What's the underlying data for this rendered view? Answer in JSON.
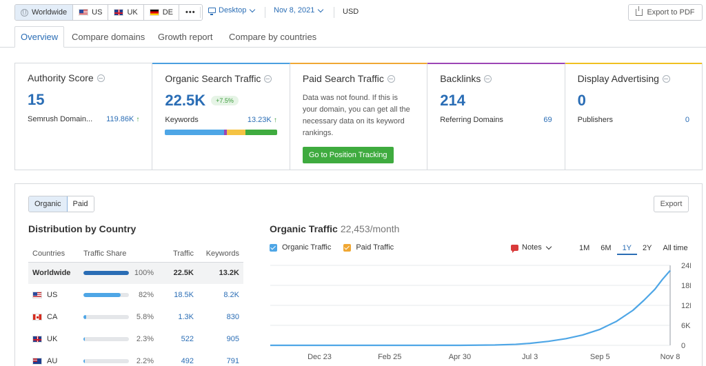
{
  "topbar": {
    "regions": [
      {
        "label": "Worldwide",
        "icon": "globe-icon",
        "active": true
      },
      {
        "label": "US",
        "icon": "flag-us-icon",
        "active": false
      },
      {
        "label": "UK",
        "icon": "flag-uk-icon",
        "active": false
      },
      {
        "label": "DE",
        "icon": "flag-de-icon",
        "active": false
      }
    ],
    "more_label": "•••",
    "device": "Desktop",
    "date": "Nov 8, 2021",
    "currency": "USD",
    "export_pdf": "Export to PDF"
  },
  "tabs": [
    {
      "label": "Overview",
      "active": true
    },
    {
      "label": "Compare domains",
      "active": false
    },
    {
      "label": "Growth report",
      "active": false
    },
    {
      "label": "Compare by countries",
      "active": false
    }
  ],
  "cards": {
    "authority": {
      "title": "Authority Score",
      "value": "15",
      "sub_label": "Semrush Domain...",
      "sub_value": "119.86K",
      "sub_arrow": "↑"
    },
    "organic": {
      "title": "Organic Search Traffic",
      "value": "22.5K",
      "badge": "+7.5%",
      "sub_label": "Keywords",
      "sub_value": "13.23K",
      "sub_arrow": "↑",
      "bar_segments": [
        {
          "color": "#4ea6e6",
          "share": 0.53
        },
        {
          "color": "#9c45b5",
          "share": 0.02
        },
        {
          "color": "#f5c343",
          "share": 0.17
        },
        {
          "color": "#3fab3f",
          "share": 0.28
        }
      ]
    },
    "paid": {
      "title": "Paid Search Traffic",
      "message": "Data was not found. If this is your domain, you can get all the necessary data on its keyword rankings.",
      "button": "Go to Position Tracking"
    },
    "backlinks": {
      "title": "Backlinks",
      "value": "214",
      "sub_label": "Referring Domains",
      "sub_value": "69"
    },
    "display": {
      "title": "Display Advertising",
      "value": "0",
      "sub_label": "Publishers",
      "sub_value": "0"
    }
  },
  "panel": {
    "seg": [
      "Organic",
      "Paid"
    ],
    "export": "Export",
    "dist_title": "Distribution by Country",
    "columns": [
      "Countries",
      "Traffic Share",
      "Traffic",
      "Keywords"
    ],
    "rows": [
      {
        "country": "Worldwide",
        "flag": "",
        "share": 1.0,
        "pct": "100%",
        "traffic": "22.5K",
        "keywords": "13.2K"
      },
      {
        "country": "US",
        "flag": "flag-us-icon",
        "share": 0.82,
        "pct": "82%",
        "traffic": "18.5K",
        "keywords": "8.2K"
      },
      {
        "country": "CA",
        "flag": "flag-ca-icon",
        "share": 0.058,
        "pct": "5.8%",
        "traffic": "1.3K",
        "keywords": "830"
      },
      {
        "country": "UK",
        "flag": "flag-uk-icon",
        "share": 0.023,
        "pct": "2.3%",
        "traffic": "522",
        "keywords": "905"
      },
      {
        "country": "AU",
        "flag": "flag-au-icon",
        "share": 0.022,
        "pct": "2.2%",
        "traffic": "492",
        "keywords": "791"
      }
    ]
  },
  "chart": {
    "title": "Organic Traffic",
    "metric": "22,453/month",
    "legend": [
      {
        "label": "Organic Traffic",
        "color": "#4ea6e6"
      },
      {
        "label": "Paid Traffic",
        "color": "#f0a733"
      }
    ],
    "notes": "Notes",
    "ranges": [
      {
        "label": "1M",
        "active": false
      },
      {
        "label": "6M",
        "active": false
      },
      {
        "label": "1Y",
        "active": true
      },
      {
        "label": "2Y",
        "active": false
      },
      {
        "label": "All time",
        "active": false
      }
    ]
  },
  "chart_data": {
    "type": "line",
    "x_ticks": [
      "Dec 23",
      "Feb 25",
      "Apr 30",
      "Jul 3",
      "Sep 5",
      "Nov 8"
    ],
    "y_ticks": [
      "24K",
      "18K",
      "12K",
      "6K",
      "0"
    ],
    "ylim": [
      0,
      24000
    ],
    "grid": true,
    "series": [
      {
        "name": "Organic Traffic",
        "color": "#4ea6e6",
        "x": [
          "2020-11-08",
          "2020-12-23",
          "2021-02-25",
          "2021-04-30",
          "2021-06-01",
          "2021-06-20",
          "2021-07-03",
          "2021-07-20",
          "2021-08-05",
          "2021-08-20",
          "2021-09-05",
          "2021-09-20",
          "2021-10-05",
          "2021-10-15",
          "2021-10-25",
          "2021-11-01",
          "2021-11-08"
        ],
        "values": [
          0,
          0,
          0,
          0,
          100,
          300,
          600,
          1200,
          2000,
          3100,
          4800,
          7200,
          10500,
          13500,
          16800,
          19800,
          22453
        ]
      }
    ]
  }
}
